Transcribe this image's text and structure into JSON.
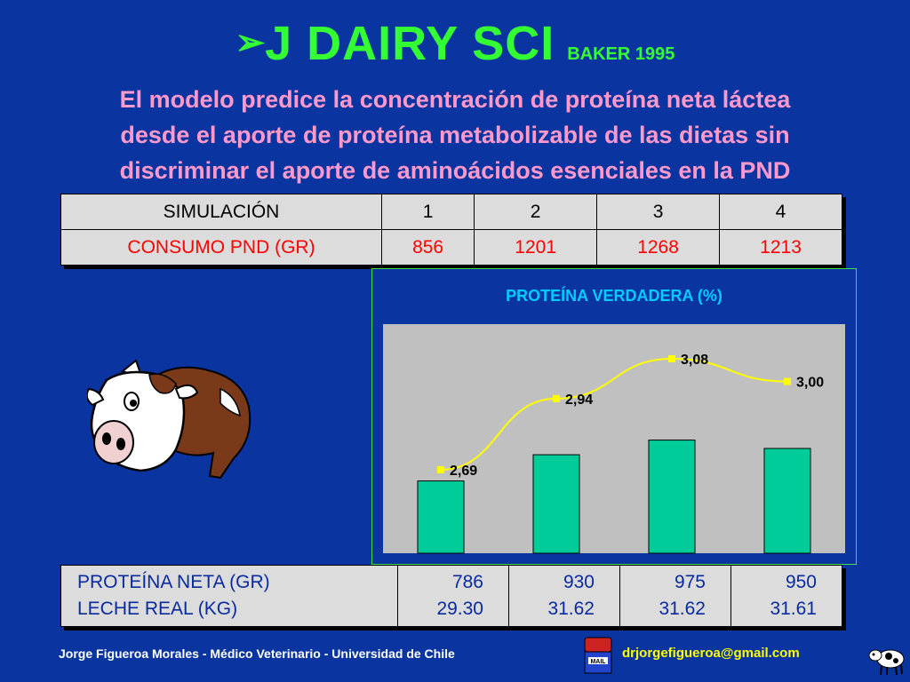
{
  "header": {
    "arrow": "➢",
    "title": "J DAIRY SCI",
    "subtitle": "BAKER 1995"
  },
  "statement": {
    "line1": "El modelo predice la concentración de proteína neta láctea",
    "line2": "desde el aporte de proteína metabolizable de las dietas sin",
    "line3": "discriminar el aporte de aminoácidos esenciales en la PND"
  },
  "top_table": {
    "header_label": "SIMULACIÓN",
    "columns": [
      "1",
      "2",
      "3",
      "4"
    ],
    "row_label": "CONSUMO PND (GR)",
    "row_values": [
      "856",
      "1201",
      "1268",
      "1213"
    ]
  },
  "chart_data": {
    "type": "bar",
    "title": "PROTEÍNA VERDADERA (%)",
    "categories": [
      "1",
      "2",
      "3",
      "4"
    ],
    "values": [
      2.69,
      2.94,
      3.08,
      3.0
    ],
    "value_labels": [
      "2,69",
      "2,94",
      "3,08",
      "3,00"
    ],
    "overlay": "line",
    "colors": {
      "bar": "#00cc99",
      "line": "#ffff00",
      "plot_bg": "#c0c0c0"
    }
  },
  "bottom_table": {
    "row1_label": "PROTEÍNA NETA (GR)",
    "row2_label": "LECHE REAL (KG)",
    "row1_values": [
      "786",
      "930",
      "975",
      "950"
    ],
    "row2_values": [
      "29.30",
      "31.62",
      "31.62",
      "31.61"
    ]
  },
  "footer": {
    "author": "Jorge Figueroa Morales  -  Médico Veterinario  -  Universidad de Chile",
    "mail_label": "MAIL",
    "email": "drjorgefigueroa@gmail.com"
  }
}
